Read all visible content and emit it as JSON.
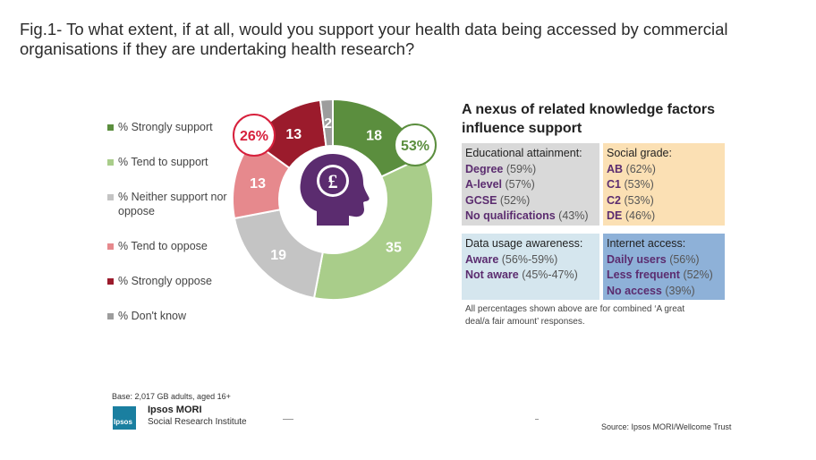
{
  "figure": {
    "title": "Fig.1- To what extent, if at all, would you support your health data being accessed by commercial organisations if they are undertaking health research?"
  },
  "chart_data": {
    "type": "pie",
    "variant": "donut",
    "categories": [
      "% Strongly support",
      "% Tend to support",
      "% Neither support nor oppose",
      "% Tend to oppose",
      "% Strongly oppose",
      "% Don't know"
    ],
    "values": [
      18,
      35,
      19,
      13,
      13,
      2
    ],
    "colors": [
      "#5b8e3e",
      "#a9cd8a",
      "#c4c4c4",
      "#e6898d",
      "#9b1b2c",
      "#9d9d9d"
    ],
    "legend_position": "left",
    "center_icon": "head-with-pound-icon",
    "callouts": [
      {
        "label": "53%",
        "color": "#5b8e3e"
      },
      {
        "label": "26%",
        "color": "#d7203c"
      }
    ]
  },
  "nexus": {
    "title": "A nexus of related knowledge factors influence support",
    "boxes": [
      {
        "heading": "Educational attainment:",
        "bg": "#d9d9d9",
        "items": [
          {
            "label": "Degree",
            "value": "(59%)"
          },
          {
            "label": "A-level",
            "value": "(57%)"
          },
          {
            "label": "GCSE",
            "value": "(52%)"
          },
          {
            "label": "No qualifications",
            "value": "(43%)"
          }
        ]
      },
      {
        "heading": "Social grade:",
        "bg": "#fbe0b4",
        "items": [
          {
            "label": "AB",
            "value": "(62%)"
          },
          {
            "label": "C1",
            "value": "(53%)"
          },
          {
            "label": "C2",
            "value": "(53%)"
          },
          {
            "label": "DE",
            "value": "(46%)"
          }
        ]
      },
      {
        "heading": "Data usage awareness:",
        "bg": "#d5e6ee",
        "items": [
          {
            "label": "Aware",
            "value": "(56%-59%)"
          },
          {
            "label": "Not aware",
            "value": "(45%-47%)"
          }
        ]
      },
      {
        "heading": "Internet access:",
        "bg": "#8eb1d8",
        "items": [
          {
            "label": "Daily users",
            "value": "(56%)"
          },
          {
            "label": "Less frequent",
            "value": "(52%)"
          },
          {
            "label": "No access",
            "value": "(39%)"
          }
        ]
      }
    ],
    "footnote": "All percentages shown above are for combined ‘A great deal/a fair amount’ responses."
  },
  "footer": {
    "base": "Base: 2,017 GB adults, aged 16+",
    "logo_text": "Ipsos",
    "brand": "Ipsos MORI",
    "brand_sub": "Social Research Institute",
    "source": "Source:  Ipsos MORI/Wellcome Trust"
  }
}
